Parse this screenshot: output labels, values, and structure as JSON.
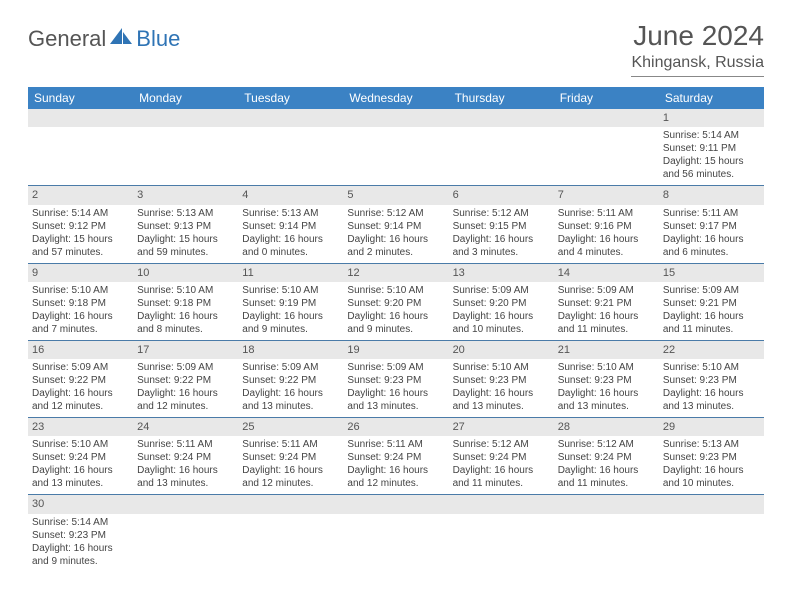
{
  "logo": {
    "general": "General",
    "blue": "Blue"
  },
  "header": {
    "month": "June 2024",
    "location": "Khingansk, Russia"
  },
  "colors": {
    "header_bg": "#3b82c4",
    "header_text": "#ffffff",
    "daynum_bg": "#e8e8e8",
    "border": "#4a7ba8",
    "logo_blue": "#2f74b5"
  },
  "weekdays": [
    "Sunday",
    "Monday",
    "Tuesday",
    "Wednesday",
    "Thursday",
    "Friday",
    "Saturday"
  ],
  "weeks": [
    [
      null,
      null,
      null,
      null,
      null,
      null,
      {
        "d": "1",
        "sr": "Sunrise: 5:14 AM",
        "ss": "Sunset: 9:11 PM",
        "dl1": "Daylight: 15 hours",
        "dl2": "and 56 minutes."
      }
    ],
    [
      {
        "d": "2",
        "sr": "Sunrise: 5:14 AM",
        "ss": "Sunset: 9:12 PM",
        "dl1": "Daylight: 15 hours",
        "dl2": "and 57 minutes."
      },
      {
        "d": "3",
        "sr": "Sunrise: 5:13 AM",
        "ss": "Sunset: 9:13 PM",
        "dl1": "Daylight: 15 hours",
        "dl2": "and 59 minutes."
      },
      {
        "d": "4",
        "sr": "Sunrise: 5:13 AM",
        "ss": "Sunset: 9:14 PM",
        "dl1": "Daylight: 16 hours",
        "dl2": "and 0 minutes."
      },
      {
        "d": "5",
        "sr": "Sunrise: 5:12 AM",
        "ss": "Sunset: 9:14 PM",
        "dl1": "Daylight: 16 hours",
        "dl2": "and 2 minutes."
      },
      {
        "d": "6",
        "sr": "Sunrise: 5:12 AM",
        "ss": "Sunset: 9:15 PM",
        "dl1": "Daylight: 16 hours",
        "dl2": "and 3 minutes."
      },
      {
        "d": "7",
        "sr": "Sunrise: 5:11 AM",
        "ss": "Sunset: 9:16 PM",
        "dl1": "Daylight: 16 hours",
        "dl2": "and 4 minutes."
      },
      {
        "d": "8",
        "sr": "Sunrise: 5:11 AM",
        "ss": "Sunset: 9:17 PM",
        "dl1": "Daylight: 16 hours",
        "dl2": "and 6 minutes."
      }
    ],
    [
      {
        "d": "9",
        "sr": "Sunrise: 5:10 AM",
        "ss": "Sunset: 9:18 PM",
        "dl1": "Daylight: 16 hours",
        "dl2": "and 7 minutes."
      },
      {
        "d": "10",
        "sr": "Sunrise: 5:10 AM",
        "ss": "Sunset: 9:18 PM",
        "dl1": "Daylight: 16 hours",
        "dl2": "and 8 minutes."
      },
      {
        "d": "11",
        "sr": "Sunrise: 5:10 AM",
        "ss": "Sunset: 9:19 PM",
        "dl1": "Daylight: 16 hours",
        "dl2": "and 9 minutes."
      },
      {
        "d": "12",
        "sr": "Sunrise: 5:10 AM",
        "ss": "Sunset: 9:20 PM",
        "dl1": "Daylight: 16 hours",
        "dl2": "and 9 minutes."
      },
      {
        "d": "13",
        "sr": "Sunrise: 5:09 AM",
        "ss": "Sunset: 9:20 PM",
        "dl1": "Daylight: 16 hours",
        "dl2": "and 10 minutes."
      },
      {
        "d": "14",
        "sr": "Sunrise: 5:09 AM",
        "ss": "Sunset: 9:21 PM",
        "dl1": "Daylight: 16 hours",
        "dl2": "and 11 minutes."
      },
      {
        "d": "15",
        "sr": "Sunrise: 5:09 AM",
        "ss": "Sunset: 9:21 PM",
        "dl1": "Daylight: 16 hours",
        "dl2": "and 11 minutes."
      }
    ],
    [
      {
        "d": "16",
        "sr": "Sunrise: 5:09 AM",
        "ss": "Sunset: 9:22 PM",
        "dl1": "Daylight: 16 hours",
        "dl2": "and 12 minutes."
      },
      {
        "d": "17",
        "sr": "Sunrise: 5:09 AM",
        "ss": "Sunset: 9:22 PM",
        "dl1": "Daylight: 16 hours",
        "dl2": "and 12 minutes."
      },
      {
        "d": "18",
        "sr": "Sunrise: 5:09 AM",
        "ss": "Sunset: 9:22 PM",
        "dl1": "Daylight: 16 hours",
        "dl2": "and 13 minutes."
      },
      {
        "d": "19",
        "sr": "Sunrise: 5:09 AM",
        "ss": "Sunset: 9:23 PM",
        "dl1": "Daylight: 16 hours",
        "dl2": "and 13 minutes."
      },
      {
        "d": "20",
        "sr": "Sunrise: 5:10 AM",
        "ss": "Sunset: 9:23 PM",
        "dl1": "Daylight: 16 hours",
        "dl2": "and 13 minutes."
      },
      {
        "d": "21",
        "sr": "Sunrise: 5:10 AM",
        "ss": "Sunset: 9:23 PM",
        "dl1": "Daylight: 16 hours",
        "dl2": "and 13 minutes."
      },
      {
        "d": "22",
        "sr": "Sunrise: 5:10 AM",
        "ss": "Sunset: 9:23 PM",
        "dl1": "Daylight: 16 hours",
        "dl2": "and 13 minutes."
      }
    ],
    [
      {
        "d": "23",
        "sr": "Sunrise: 5:10 AM",
        "ss": "Sunset: 9:24 PM",
        "dl1": "Daylight: 16 hours",
        "dl2": "and 13 minutes."
      },
      {
        "d": "24",
        "sr": "Sunrise: 5:11 AM",
        "ss": "Sunset: 9:24 PM",
        "dl1": "Daylight: 16 hours",
        "dl2": "and 13 minutes."
      },
      {
        "d": "25",
        "sr": "Sunrise: 5:11 AM",
        "ss": "Sunset: 9:24 PM",
        "dl1": "Daylight: 16 hours",
        "dl2": "and 12 minutes."
      },
      {
        "d": "26",
        "sr": "Sunrise: 5:11 AM",
        "ss": "Sunset: 9:24 PM",
        "dl1": "Daylight: 16 hours",
        "dl2": "and 12 minutes."
      },
      {
        "d": "27",
        "sr": "Sunrise: 5:12 AM",
        "ss": "Sunset: 9:24 PM",
        "dl1": "Daylight: 16 hours",
        "dl2": "and 11 minutes."
      },
      {
        "d": "28",
        "sr": "Sunrise: 5:12 AM",
        "ss": "Sunset: 9:24 PM",
        "dl1": "Daylight: 16 hours",
        "dl2": "and 11 minutes."
      },
      {
        "d": "29",
        "sr": "Sunrise: 5:13 AM",
        "ss": "Sunset: 9:23 PM",
        "dl1": "Daylight: 16 hours",
        "dl2": "and 10 minutes."
      }
    ],
    [
      {
        "d": "30",
        "sr": "Sunrise: 5:14 AM",
        "ss": "Sunset: 9:23 PM",
        "dl1": "Daylight: 16 hours",
        "dl2": "and 9 minutes."
      },
      null,
      null,
      null,
      null,
      null,
      null
    ]
  ]
}
